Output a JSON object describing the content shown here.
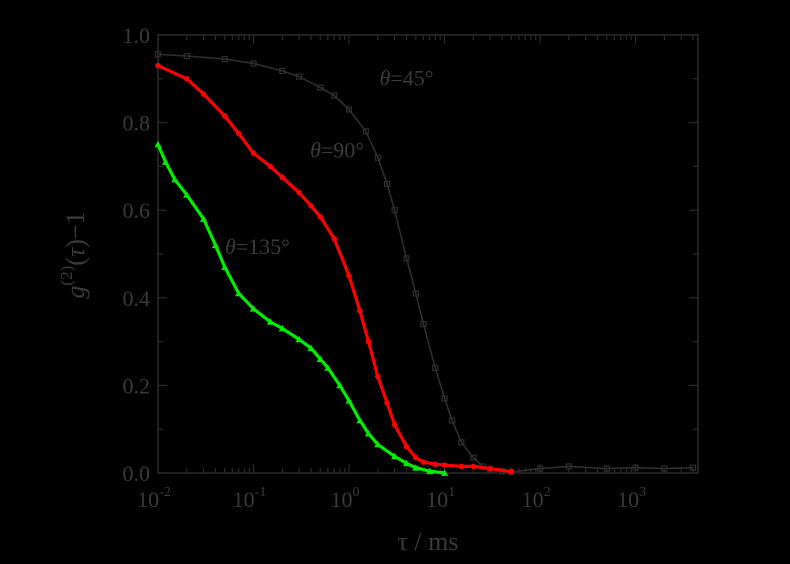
{
  "chart_data": {
    "type": "line",
    "title": "",
    "xlabel": "τ / ms",
    "ylabel": "g(2)(τ)−1",
    "x_scale": "log",
    "xlim": [
      0.01,
      4500
    ],
    "ylim": [
      0.0,
      1.0
    ],
    "y_ticks": [
      "0.0",
      "0.2",
      "0.4",
      "0.6",
      "0.8",
      "1.0"
    ],
    "x_ticks": [
      {
        "base": "10",
        "exp": "-2"
      },
      {
        "base": "10",
        "exp": "-1"
      },
      {
        "base": "10",
        "exp": "0"
      },
      {
        "base": "10",
        "exp": "1"
      },
      {
        "base": "10",
        "exp": "2"
      },
      {
        "base": "10",
        "exp": "3"
      }
    ],
    "series": [
      {
        "name": "θ=45°",
        "color": "#2e2e2e",
        "marker": "square",
        "x": [
          0.01,
          0.02,
          0.05,
          0.1,
          0.2,
          0.3,
          0.5,
          0.7,
          1.0,
          1.5,
          2.0,
          2.5,
          3.0,
          4.0,
          5.0,
          6.0,
          8.0,
          10,
          12,
          15,
          20,
          25,
          30,
          40,
          50,
          100,
          200,
          500,
          1000,
          2000,
          4000
        ],
        "y": [
          0.956,
          0.952,
          0.945,
          0.935,
          0.918,
          0.905,
          0.88,
          0.862,
          0.83,
          0.78,
          0.72,
          0.66,
          0.6,
          0.49,
          0.41,
          0.34,
          0.24,
          0.17,
          0.12,
          0.07,
          0.035,
          0.015,
          0.008,
          0.004,
          0.002,
          0.01,
          0.015,
          0.01,
          0.012,
          0.01,
          0.012
        ]
      },
      {
        "name": "θ=90°",
        "color": "#ff0000",
        "marker": "circle",
        "x": [
          0.01,
          0.02,
          0.03,
          0.05,
          0.07,
          0.1,
          0.15,
          0.2,
          0.3,
          0.4,
          0.5,
          0.7,
          1.0,
          1.3,
          1.6,
          2.0,
          2.5,
          3.0,
          4.0,
          5.0,
          6.0,
          8.0,
          10,
          15,
          20,
          30,
          50
        ],
        "y": [
          0.93,
          0.9,
          0.865,
          0.815,
          0.775,
          0.73,
          0.7,
          0.675,
          0.64,
          0.61,
          0.585,
          0.535,
          0.45,
          0.37,
          0.3,
          0.22,
          0.16,
          0.11,
          0.06,
          0.035,
          0.025,
          0.02,
          0.018,
          0.015,
          0.015,
          0.01,
          0.003
        ]
      },
      {
        "name": "θ=135°",
        "color": "#00ee00",
        "marker": "triangle",
        "x": [
          0.01,
          0.012,
          0.015,
          0.02,
          0.03,
          0.04,
          0.05,
          0.07,
          0.1,
          0.15,
          0.2,
          0.3,
          0.4,
          0.5,
          0.6,
          0.8,
          1.0,
          1.3,
          1.6,
          2.0,
          3.0,
          4.0,
          5.0,
          7.0,
          10
        ],
        "y": [
          0.75,
          0.71,
          0.67,
          0.635,
          0.58,
          0.52,
          0.47,
          0.41,
          0.375,
          0.345,
          0.33,
          0.305,
          0.285,
          0.26,
          0.24,
          0.2,
          0.165,
          0.12,
          0.09,
          0.065,
          0.038,
          0.022,
          0.012,
          0.004,
          0.0
        ]
      }
    ],
    "annotations": [
      {
        "symbol": "θ",
        "rest": "=45°",
        "x": 4.0,
        "y": 0.885
      },
      {
        "symbol": "θ",
        "rest": "=90°",
        "x": 0.75,
        "y": 0.72
      },
      {
        "symbol": "θ",
        "rest": "=135°",
        "x": 0.11,
        "y": 0.5
      }
    ],
    "grid": false,
    "legend": "none"
  }
}
